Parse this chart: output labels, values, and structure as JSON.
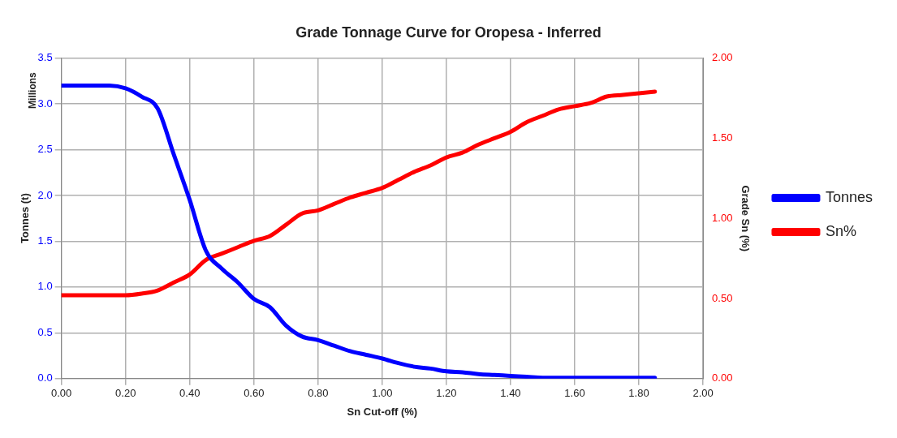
{
  "chart_data": {
    "type": "line",
    "title": "Grade Tonnage Curve for Oropesa - Inferred",
    "xlabel": "Sn Cut-off (%)",
    "ylabel": "Tonnes (t)",
    "y2label": "Grade Sn (%)",
    "annotations": [
      "Millions"
    ],
    "x": [
      0,
      0.05,
      0.1,
      0.15,
      0.2,
      0.25,
      0.3,
      0.35,
      0.4,
      0.45,
      0.5,
      0.55,
      0.6,
      0.65,
      0.7,
      0.75,
      0.8,
      0.85,
      0.9,
      0.95,
      1.0,
      1.05,
      1.1,
      1.15,
      1.2,
      1.25,
      1.3,
      1.35,
      1.4,
      1.45,
      1.5,
      1.55,
      1.6,
      1.65,
      1.7,
      1.75,
      1.8,
      1.85
    ],
    "series": [
      {
        "name": "Tonnes",
        "color": "#0000ff",
        "values": [
          3.2,
          3.2,
          3.2,
          3.2,
          3.17,
          3.08,
          2.95,
          2.45,
          1.95,
          1.4,
          1.2,
          1.05,
          0.87,
          0.78,
          0.58,
          0.46,
          0.42,
          0.36,
          0.3,
          0.26,
          0.22,
          0.17,
          0.13,
          0.11,
          0.08,
          0.07,
          0.05,
          0.04,
          0.03,
          0.02,
          0.01,
          0.01,
          0.01,
          0.01,
          0.01,
          0.01,
          0.01,
          0.01
        ]
      },
      {
        "name": "Sn%",
        "color": "#ff0000",
        "axis": "y2",
        "values": [
          0.52,
          0.52,
          0.52,
          0.52,
          0.52,
          0.53,
          0.55,
          0.6,
          0.65,
          0.74,
          0.78,
          0.82,
          0.86,
          0.89,
          0.96,
          1.03,
          1.05,
          1.09,
          1.13,
          1.16,
          1.19,
          1.24,
          1.29,
          1.33,
          1.38,
          1.41,
          1.46,
          1.5,
          1.54,
          1.6,
          1.64,
          1.68,
          1.7,
          1.72,
          1.76,
          1.77,
          1.78,
          1.79
        ]
      }
    ],
    "xlim": [
      0,
      2
    ],
    "xticks": [
      {
        "value": 0,
        "label": "0.00"
      },
      {
        "value": 0.2,
        "label": "0.20"
      },
      {
        "value": 0.4,
        "label": "0.40"
      },
      {
        "value": 0.6,
        "label": "0.60"
      },
      {
        "value": 0.8,
        "label": "0.80"
      },
      {
        "value": 1,
        "label": "1.00"
      },
      {
        "value": 1.2,
        "label": "1.20"
      },
      {
        "value": 1.4,
        "label": "1.40"
      },
      {
        "value": 1.6,
        "label": "1.60"
      },
      {
        "value": 1.8,
        "label": "1.80"
      },
      {
        "value": 2,
        "label": "2.00"
      }
    ],
    "ylim": [
      0,
      3.5
    ],
    "yticks": [
      {
        "value": 0,
        "label": "0.0"
      },
      {
        "value": 0.5,
        "label": "0.5"
      },
      {
        "value": 1,
        "label": "1.0"
      },
      {
        "value": 1.5,
        "label": "1.5"
      },
      {
        "value": 2,
        "label": "2.0"
      },
      {
        "value": 2.5,
        "label": "2.5"
      },
      {
        "value": 3,
        "label": "3.0"
      },
      {
        "value": 3.5,
        "label": "3.5"
      }
    ],
    "y2lim": [
      0,
      2
    ],
    "y2ticks": [
      {
        "value": 0,
        "label": "0.00"
      },
      {
        "value": 0.5,
        "label": "0.50"
      },
      {
        "value": 1,
        "label": "1.00"
      },
      {
        "value": 1.5,
        "label": "1.50"
      },
      {
        "value": 2,
        "label": "2.00"
      }
    ],
    "grid": true,
    "legend": "right",
    "marker": "none",
    "line_style": "solid"
  }
}
